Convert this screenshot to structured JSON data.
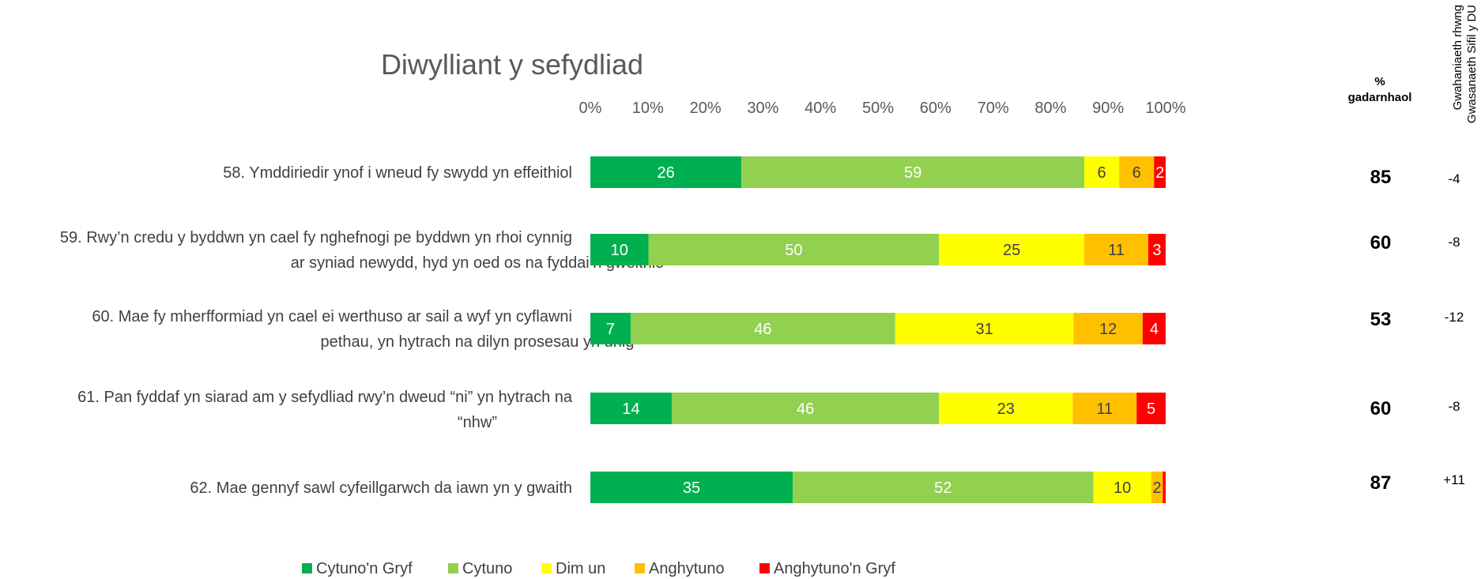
{
  "chart_data": {
    "type": "bar",
    "orientation": "horizontal",
    "stacked": "percent",
    "title": "Diwylliant y sefydliad",
    "xlim": [
      0,
      100
    ],
    "x_ticks": [
      "0%",
      "10%",
      "20%",
      "30%",
      "40%",
      "50%",
      "60%",
      "70%",
      "80%",
      "90%",
      "100%"
    ],
    "grid": false,
    "legend_position": "bottom",
    "categories": [
      [
        "58. Ymddiriedir ynof i wneud fy swydd yn effeithiol"
      ],
      [
        "59. Rwy’n credu y byddwn yn cael fy nghefnogi pe byddwn yn rhoi cynnig",
        "ar syniad newydd, hyd yn oed os na fyddai’n gweithio"
      ],
      [
        "60. Mae fy mherfformiad yn cael ei werthuso ar sail a wyf yn cyflawni",
        "pethau, yn hytrach na dilyn prosesau yn unig"
      ],
      [
        "61. Pan fyddaf yn siarad am y sefydliad rwy’n dweud “ni” yn hytrach na",
        "“nhw”"
      ],
      [
        "62. Mae gennyf sawl cyfeillgarwch da iawn yn y gwaith"
      ]
    ],
    "series": [
      {
        "name": "Cytuno'n Gryf",
        "color": "#00b050",
        "text_color": "#ffffff",
        "values": [
          26,
          10,
          7,
          14,
          35
        ]
      },
      {
        "name": "Cytuno",
        "color": "#92d050",
        "text_color": "#ffffff",
        "values": [
          59,
          50,
          46,
          46,
          52
        ]
      },
      {
        "name": "Dim un",
        "color": "#ffff00",
        "text_color": "#404040",
        "values": [
          6,
          25,
          31,
          23,
          10
        ]
      },
      {
        "name": "Anghytuno",
        "color": "#ffc000",
        "text_color": "#404040",
        "values": [
          6,
          11,
          12,
          11,
          2
        ]
      },
      {
        "name": "Anghytuno'n Gryf",
        "color": "#ff0000",
        "text_color": "#ffffff",
        "values": [
          2,
          3,
          4,
          5,
          0.5
        ]
      }
    ],
    "series_labels": [
      [
        "26",
        "10",
        "7",
        "14",
        "35"
      ],
      [
        "59",
        "50",
        "46",
        "46",
        "52"
      ],
      [
        "6",
        "25",
        "31",
        "23",
        "10"
      ],
      [
        "6",
        "11",
        "12",
        "11",
        "2"
      ],
      [
        "2",
        "3",
        "4",
        "5",
        ""
      ]
    ],
    "positive_header": [
      "%",
      "gadarnhaol"
    ],
    "positive_values": [
      "85",
      "60",
      "53",
      "60",
      "87"
    ],
    "difference_header": [
      "Gwahaniaeth rhwng",
      "Gwasanaeth Sifil y DU"
    ],
    "difference_values": [
      "-4",
      "-8",
      "-12",
      "-8",
      "+11"
    ]
  }
}
